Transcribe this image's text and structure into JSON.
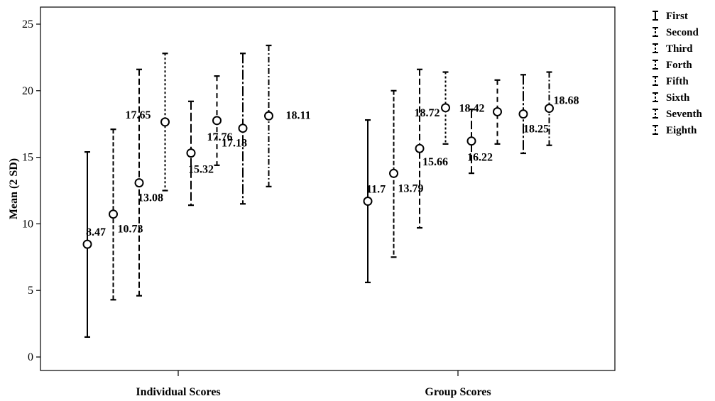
{
  "chart_data": {
    "type": "errorbar",
    "ylabel": "Mean (2 SD)",
    "xlabel": "",
    "ylim": [
      0,
      25
    ],
    "yticks": [
      "0",
      "5",
      "10",
      "15",
      "20",
      "25"
    ],
    "categories": [
      "Individual Scores",
      "Group Scores"
    ],
    "legend_position": "right",
    "series": [
      {
        "name": "First",
        "dash": "",
        "means": [
          8.47,
          11.7
        ],
        "label_text": [
          "8.47",
          "11.7"
        ],
        "low": [
          1.5,
          5.6
        ],
        "high": [
          15.4,
          17.8
        ]
      },
      {
        "name": "Second",
        "dash": "6 3",
        "means": [
          10.73,
          13.79
        ],
        "label_text": [
          "10.73",
          "13.79"
        ],
        "low": [
          4.3,
          7.5
        ],
        "high": [
          17.1,
          20.0
        ]
      },
      {
        "name": "Third",
        "dash": "9 4",
        "means": [
          13.08,
          15.66
        ],
        "label_text": [
          "13.08",
          "15.66"
        ],
        "low": [
          4.6,
          9.7
        ],
        "high": [
          21.6,
          21.6
        ]
      },
      {
        "name": "Forth",
        "dash": "3 3",
        "means": [
          17.65,
          18.72
        ],
        "label_text": [
          "17.65",
          "18.72"
        ],
        "low": [
          12.5,
          16.0
        ],
        "high": [
          22.8,
          21.4
        ]
      },
      {
        "name": "Fifth",
        "dash": "12 4",
        "means": [
          15.32,
          16.22
        ],
        "label_text": [
          "15.32",
          "16.22"
        ],
        "low": [
          11.4,
          13.8
        ],
        "high": [
          19.2,
          18.6
        ]
      },
      {
        "name": "Sixth",
        "dash": "7 5",
        "means": [
          17.76,
          18.42
        ],
        "label_text": [
          "17.76",
          "18.42"
        ],
        "low": [
          14.4,
          16.0
        ],
        "high": [
          21.1,
          20.8
        ]
      },
      {
        "name": "Seventh",
        "dash": "14 3 3 3",
        "means": [
          17.18,
          18.25
        ],
        "label_text": [
          "17.18",
          "18.25"
        ],
        "low": [
          11.5,
          15.3
        ],
        "high": [
          22.8,
          21.2
        ]
      },
      {
        "name": "Eighth",
        "dash": "8 3 2 3",
        "means": [
          18.11,
          18.68
        ],
        "label_text": [
          "18.11",
          "18.68"
        ],
        "low": [
          12.8,
          15.9
        ],
        "high": [
          23.4,
          21.4
        ]
      }
    ]
  }
}
